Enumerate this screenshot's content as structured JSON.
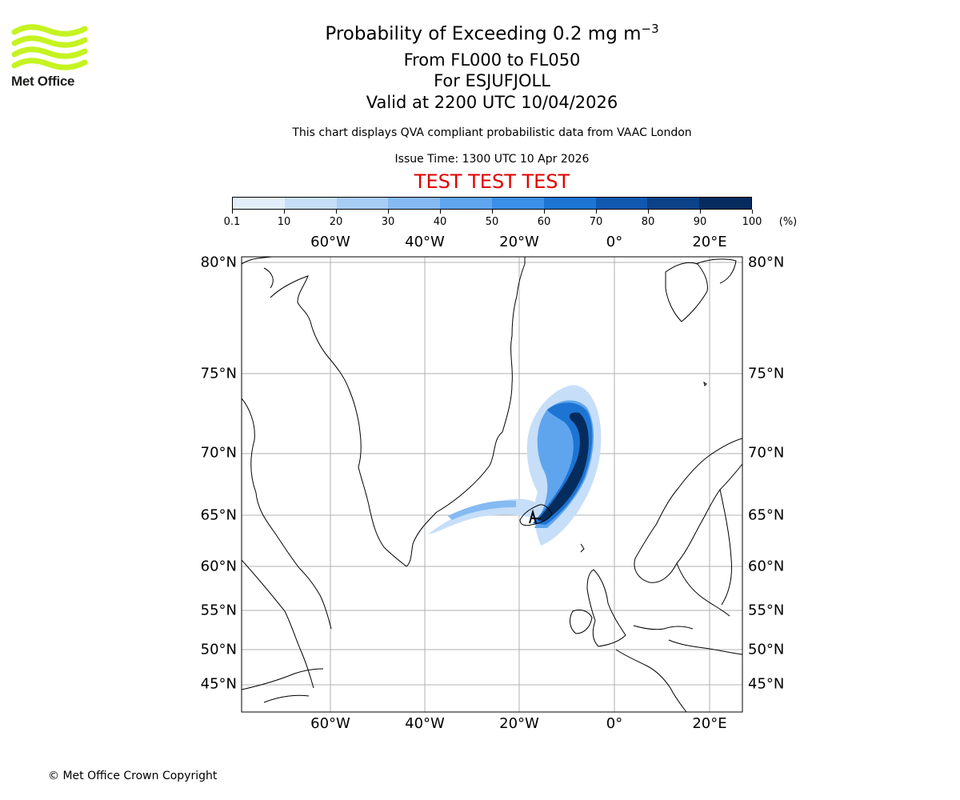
{
  "logo": {
    "text": "Met Office",
    "colors": {
      "wave": "#c6f321",
      "text": "#1d1d1b"
    }
  },
  "header": {
    "title_main": "Probability of Exceeding 0.2 mg m",
    "title_exponent": "−3",
    "subtitle_levels": "From FL000 to FL050",
    "subtitle_volcano": "For ESJUFJOLL",
    "subtitle_valid": "Valid at 2200 UTC 10/04/2026",
    "description": "This chart displays QVA compliant probabilistic data from VAAC London",
    "issue_time": "Issue Time: 1300 UTC 10 Apr 2026",
    "test_banner": "TEST TEST TEST",
    "test_color": "#e00000"
  },
  "colorbar": {
    "ticks": [
      "0.1",
      "10",
      "20",
      "30",
      "40",
      "50",
      "60",
      "70",
      "80",
      "90",
      "100"
    ],
    "unit": "(%)",
    "colors": [
      "#e3eefb",
      "#c6def8",
      "#a8cdf5",
      "#85baf2",
      "#5fa5ee",
      "#3a8fe7",
      "#1d74d3",
      "#1058b0",
      "#0b4288",
      "#062c5e"
    ]
  },
  "map": {
    "projection": "polar-stereographic",
    "lon_labels": [
      "60°W",
      "40°W",
      "20°W",
      "0°",
      "20°E"
    ],
    "lat_labels": [
      "80°N",
      "75°N",
      "70°N",
      "65°N",
      "60°N",
      "55°N",
      "50°N",
      "45°N"
    ],
    "gridline_color": "#b0b0b0",
    "plume": {
      "source": "ESJUFJOLL",
      "description": "ash probability plume from south-east Iceland curving north-east and north into the Norwegian Sea, with a thin low-probability tail west over the Denmark Strait"
    }
  },
  "footer": {
    "copyright": "© Met Office Crown Copyright"
  }
}
